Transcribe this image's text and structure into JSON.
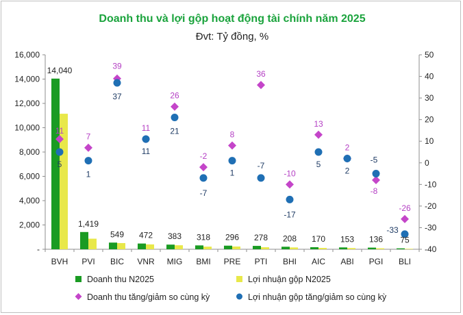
{
  "chart_data": {
    "type": "bar",
    "title": "Doanh thu và lợi gộp hoạt động tài chính năm 2025",
    "subtitle": "Đvt: Tỷ đồng, %",
    "categories": [
      "BVH",
      "PVI",
      "BIC",
      "VNR",
      "MIG",
      "BMI",
      "PRE",
      "PTI",
      "BHI",
      "AIC",
      "ABI",
      "PGI",
      "BLI"
    ],
    "series": [
      {
        "name": "Doanh thu N2025",
        "kind": "bar",
        "axis": "left",
        "color": "#1a9b23",
        "values": [
          14040,
          1419,
          549,
          472,
          383,
          318,
          296,
          278,
          208,
          170,
          153,
          136,
          75
        ],
        "labels": [
          "14,040",
          "1,419",
          "549",
          "472",
          "383",
          "318",
          "296",
          "278",
          "208",
          "170",
          "153",
          "136",
          "75"
        ]
      },
      {
        "name": "Lợi nhuận gộp N2025",
        "kind": "bar",
        "axis": "left",
        "color": "#e8e84a",
        "values": [
          11150,
          870,
          510,
          400,
          330,
          215,
          225,
          165,
          150,
          110,
          100,
          80,
          40
        ]
      },
      {
        "name": "Doanh thu tăng/giảm so cùng kỳ",
        "kind": "scatter",
        "axis": "right",
        "color": "#c445c9",
        "values": [
          11,
          7,
          39,
          11,
          26,
          -2,
          8,
          36,
          -10,
          13,
          2,
          -8,
          -26
        ],
        "labels": [
          "11",
          "7",
          "39",
          "11",
          "26",
          "-2",
          "8",
          "36",
          "-10",
          "13",
          "2",
          "-8",
          "-26"
        ]
      },
      {
        "name": "Lợi nhuận gộp tăng/giảm so cùng kỳ",
        "kind": "scatter",
        "axis": "right",
        "color": "#1f6fb4",
        "values": [
          5,
          1,
          37,
          11,
          21,
          -7,
          1,
          -7,
          -17,
          5,
          2,
          -5,
          -33
        ],
        "labels": [
          "5",
          "1",
          "37",
          "11",
          "21",
          "-7",
          "1",
          "-7",
          "-17",
          "5",
          "2",
          "-5",
          "-33"
        ]
      }
    ],
    "left_axis": {
      "min": 0,
      "max": 16000,
      "step": 2000,
      "ticks": [
        "-",
        "2,000",
        "4,000",
        "6,000",
        "8,000",
        "10,000",
        "12,000",
        "14,000",
        "16,000"
      ]
    },
    "right_axis": {
      "min": -40,
      "max": 50,
      "step": 10,
      "ticks": [
        "-40",
        "-30",
        "-20",
        "-10",
        "0",
        "10",
        "20",
        "30",
        "40",
        "50"
      ]
    },
    "grid": false,
    "legend_position": "bottom"
  }
}
